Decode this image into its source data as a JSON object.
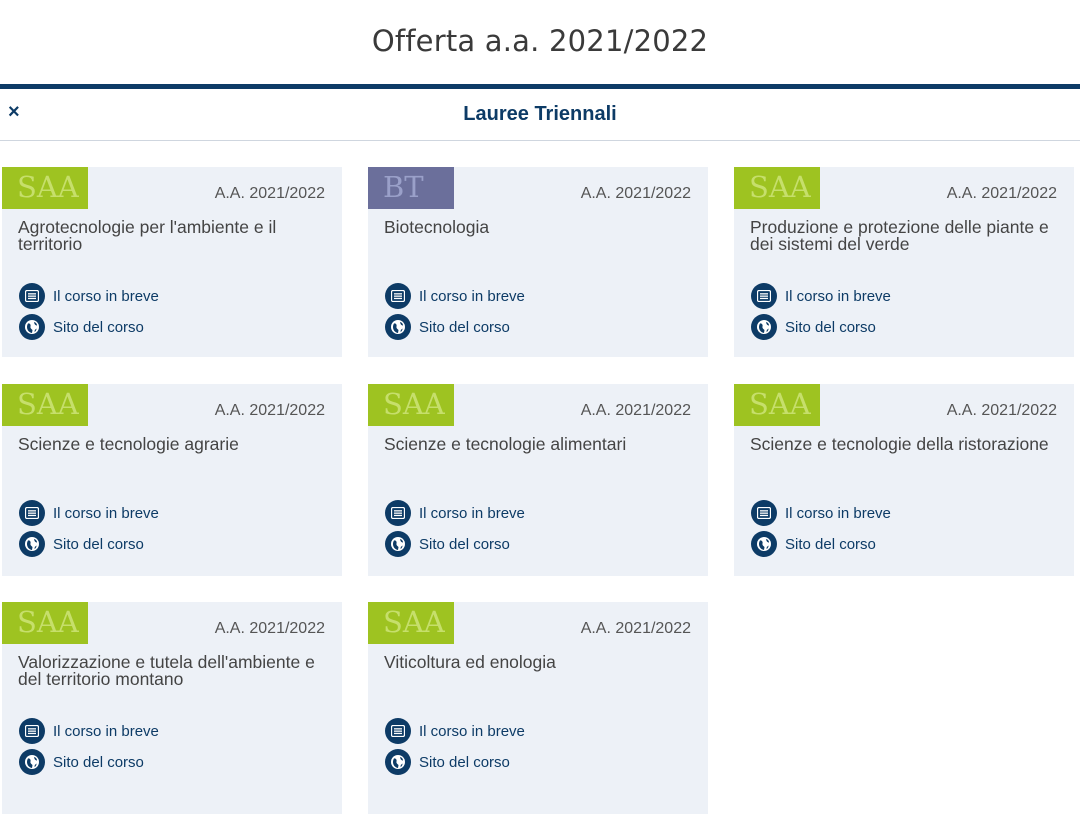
{
  "page": {
    "title": "Offerta a.a. 2021/2022"
  },
  "section": {
    "close_glyph": "×",
    "title": "Lauree Triennali"
  },
  "accent_color": "#0d3b66",
  "links": {
    "brief_label": "Il corso in breve",
    "site_label": "Sito del corso"
  },
  "courses": [
    {
      "badge": "SAA",
      "badge_type": "saa",
      "year": "A.A. 2021/2022",
      "name": "Agrotecnologie per l'ambiente e il territorio"
    },
    {
      "badge": "BT",
      "badge_type": "bt",
      "year": "A.A. 2021/2022",
      "name": "Biotecnologia"
    },
    {
      "badge": "SAA",
      "badge_type": "saa",
      "year": "A.A. 2021/2022",
      "name": "Produzione e protezione delle piante e dei sistemi del verde"
    },
    {
      "badge": "SAA",
      "badge_type": "saa",
      "year": "A.A. 2021/2022",
      "name": "Scienze e tecnologie agrarie"
    },
    {
      "badge": "SAA",
      "badge_type": "saa",
      "year": "A.A. 2021/2022",
      "name": "Scienze e tecnologie alimentari"
    },
    {
      "badge": "SAA",
      "badge_type": "saa",
      "year": "A.A. 2021/2022",
      "name": "Scienze e tecnologie della ristorazione"
    },
    {
      "badge": "SAA",
      "badge_type": "saa",
      "year": "A.A. 2021/2022",
      "name": "Valorizzazione e tutela dell'ambiente e del territorio montano"
    },
    {
      "badge": "SAA",
      "badge_type": "saa",
      "year": "A.A. 2021/2022",
      "name": "Viticoltura ed enologia"
    }
  ]
}
